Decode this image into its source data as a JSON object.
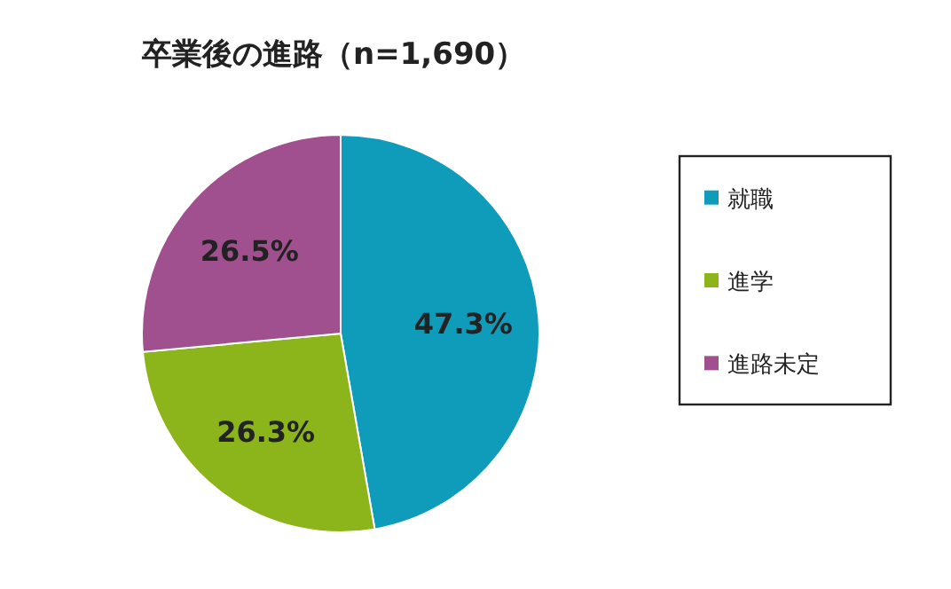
{
  "chart_data": {
    "type": "pie",
    "title": "卒業後の進路（n=1,690）",
    "categories": [
      "就職",
      "進学",
      "進路未定"
    ],
    "values": [
      47.3,
      26.3,
      26.5
    ],
    "colors": [
      "#0e9cba",
      "#8cb51c",
      "#a0508f"
    ],
    "value_labels": [
      "47.3%",
      "26.3%",
      "26.5%"
    ],
    "legend": "right"
  }
}
